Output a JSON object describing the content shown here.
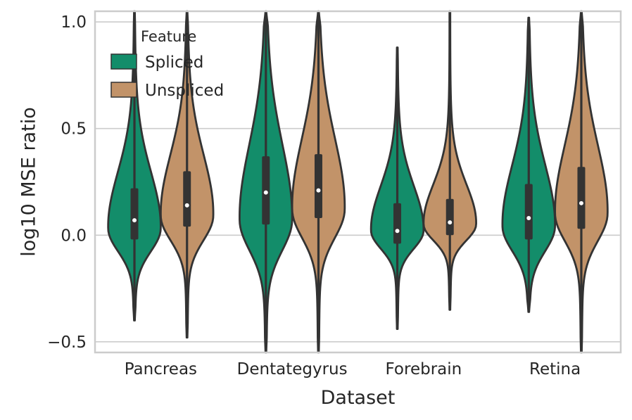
{
  "chart_data": {
    "type": "violin",
    "xlabel": "Dataset",
    "ylabel": "log10 MSE ratio",
    "ylim": [
      -0.55,
      1.05
    ],
    "yticks": [
      -0.5,
      0.0,
      0.5,
      1.0
    ],
    "ytick_labels": [
      "−0.5",
      "0.0",
      "0.5",
      "1.0"
    ],
    "grid": true,
    "legend": {
      "title": "Feature",
      "placement": "top-left",
      "entries": [
        {
          "name": "Spliced",
          "color": "#138d6a"
        },
        {
          "name": "Unspliced",
          "color": "#c29369"
        }
      ]
    },
    "categories": [
      "Pancreas",
      "Dentategyrus",
      "Forebrain",
      "Retina"
    ],
    "series": [
      {
        "name": "Spliced",
        "color": "#138d6a",
        "values": [
          {
            "min": -0.4,
            "q1": -0.02,
            "median": 0.07,
            "q3": 0.22,
            "max": 1.05,
            "mode": 0.03
          },
          {
            "min": -0.55,
            "q1": 0.05,
            "median": 0.2,
            "q3": 0.37,
            "max": 1.05,
            "mode": 0.07
          },
          {
            "min": -0.44,
            "q1": -0.04,
            "median": 0.02,
            "q3": 0.15,
            "max": 0.88,
            "mode": 0.02
          },
          {
            "min": -0.36,
            "q1": -0.02,
            "median": 0.08,
            "q3": 0.24,
            "max": 1.02,
            "mode": 0.04
          }
        ]
      },
      {
        "name": "Unspliced",
        "color": "#c29369",
        "values": [
          {
            "min": -0.48,
            "q1": 0.04,
            "median": 0.14,
            "q3": 0.3,
            "max": 1.05,
            "mode": 0.09
          },
          {
            "min": -0.55,
            "q1": 0.08,
            "median": 0.21,
            "q3": 0.38,
            "max": 1.05,
            "mode": 0.12
          },
          {
            "min": -0.35,
            "q1": 0.0,
            "median": 0.06,
            "q3": 0.17,
            "max": 1.05,
            "mode": 0.05
          },
          {
            "min": -0.55,
            "q1": 0.03,
            "median": 0.15,
            "q3": 0.32,
            "max": 1.05,
            "mode": 0.1
          }
        ]
      }
    ]
  }
}
